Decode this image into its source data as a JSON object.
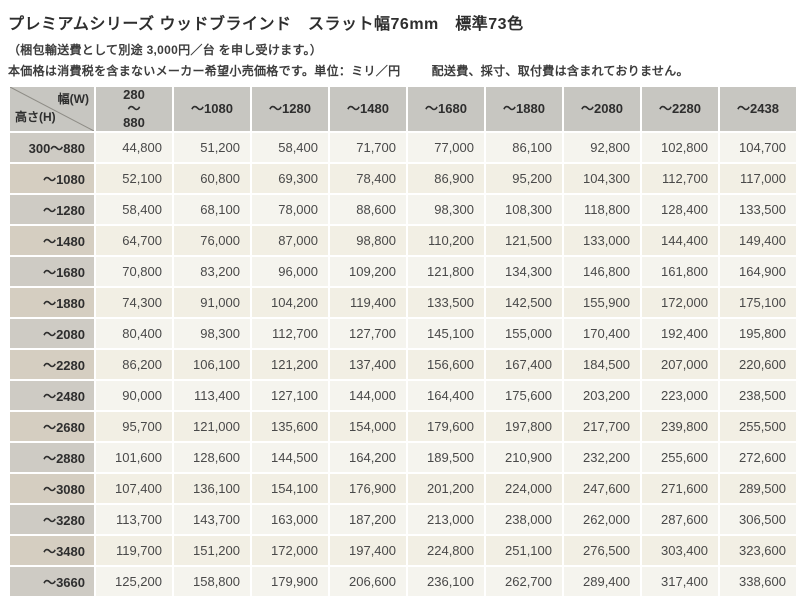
{
  "page": {
    "title": "プレミアムシリーズ ウッドブラインド　スラット幅76mm　標準73色",
    "note_packing": "（梱包輸送費として別途 3,000円／台 を申し受けます。）",
    "note_price": "本価格は消費税を含まないメーカー希望小売価格です。単位：ミリ／円",
    "note_delivery": "配送費、採寸、取付費は含まれておりません。"
  },
  "colors": {
    "header_bg": "#c7c6c1",
    "row_label_bg_odd": "#cecbc4",
    "row_label_bg_even": "#d5cec1",
    "cell_bg_odd": "#f5f4ee",
    "cell_bg_even": "#f2efe4",
    "diagonal_line": "#8e8c86"
  },
  "price_table": {
    "corner": {
      "width_label": "幅(W)",
      "height_label": "高さ(H)"
    },
    "width_headers": [
      "280\n〜\n880",
      "〜1080",
      "〜1280",
      "〜1480",
      "〜1680",
      "〜1880",
      "〜2080",
      "〜2280",
      "〜2438"
    ],
    "rows": [
      {
        "height": "300〜880",
        "prices": [
          "44,800",
          "51,200",
          "58,400",
          "71,700",
          "77,000",
          "86,100",
          "92,800",
          "102,800",
          "104,700"
        ]
      },
      {
        "height": "〜1080",
        "prices": [
          "52,100",
          "60,800",
          "69,300",
          "78,400",
          "86,900",
          "95,200",
          "104,300",
          "112,700",
          "117,000"
        ]
      },
      {
        "height": "〜1280",
        "prices": [
          "58,400",
          "68,100",
          "78,000",
          "88,600",
          "98,300",
          "108,300",
          "118,800",
          "128,400",
          "133,500"
        ]
      },
      {
        "height": "〜1480",
        "prices": [
          "64,700",
          "76,000",
          "87,000",
          "98,800",
          "110,200",
          "121,500",
          "133,000",
          "144,400",
          "149,400"
        ]
      },
      {
        "height": "〜1680",
        "prices": [
          "70,800",
          "83,200",
          "96,000",
          "109,200",
          "121,800",
          "134,300",
          "146,800",
          "161,800",
          "164,900"
        ]
      },
      {
        "height": "〜1880",
        "prices": [
          "74,300",
          "91,000",
          "104,200",
          "119,400",
          "133,500",
          "142,500",
          "155,900",
          "172,000",
          "175,100"
        ]
      },
      {
        "height": "〜2080",
        "prices": [
          "80,400",
          "98,300",
          "112,700",
          "127,700",
          "145,100",
          "155,000",
          "170,400",
          "192,400",
          "195,800"
        ]
      },
      {
        "height": "〜2280",
        "prices": [
          "86,200",
          "106,100",
          "121,200",
          "137,400",
          "156,600",
          "167,400",
          "184,500",
          "207,000",
          "220,600"
        ]
      },
      {
        "height": "〜2480",
        "prices": [
          "90,000",
          "113,400",
          "127,100",
          "144,000",
          "164,400",
          "175,600",
          "203,200",
          "223,000",
          "238,500"
        ]
      },
      {
        "height": "〜2680",
        "prices": [
          "95,700",
          "121,000",
          "135,600",
          "154,000",
          "179,600",
          "197,800",
          "217,700",
          "239,800",
          "255,500"
        ]
      },
      {
        "height": "〜2880",
        "prices": [
          "101,600",
          "128,600",
          "144,500",
          "164,200",
          "189,500",
          "210,900",
          "232,200",
          "255,600",
          "272,600"
        ]
      },
      {
        "height": "〜3080",
        "prices": [
          "107,400",
          "136,100",
          "154,100",
          "176,900",
          "201,200",
          "224,000",
          "247,600",
          "271,600",
          "289,500"
        ]
      },
      {
        "height": "〜3280",
        "prices": [
          "113,700",
          "143,700",
          "163,000",
          "187,200",
          "213,000",
          "238,000",
          "262,000",
          "287,600",
          "306,500"
        ]
      },
      {
        "height": "〜3480",
        "prices": [
          "119,700",
          "151,200",
          "172,000",
          "197,400",
          "224,800",
          "251,100",
          "276,500",
          "303,400",
          "323,600"
        ]
      },
      {
        "height": "〜3660",
        "prices": [
          "125,200",
          "158,800",
          "179,900",
          "206,600",
          "236,100",
          "262,700",
          "289,400",
          "317,400",
          "338,600"
        ]
      }
    ]
  }
}
